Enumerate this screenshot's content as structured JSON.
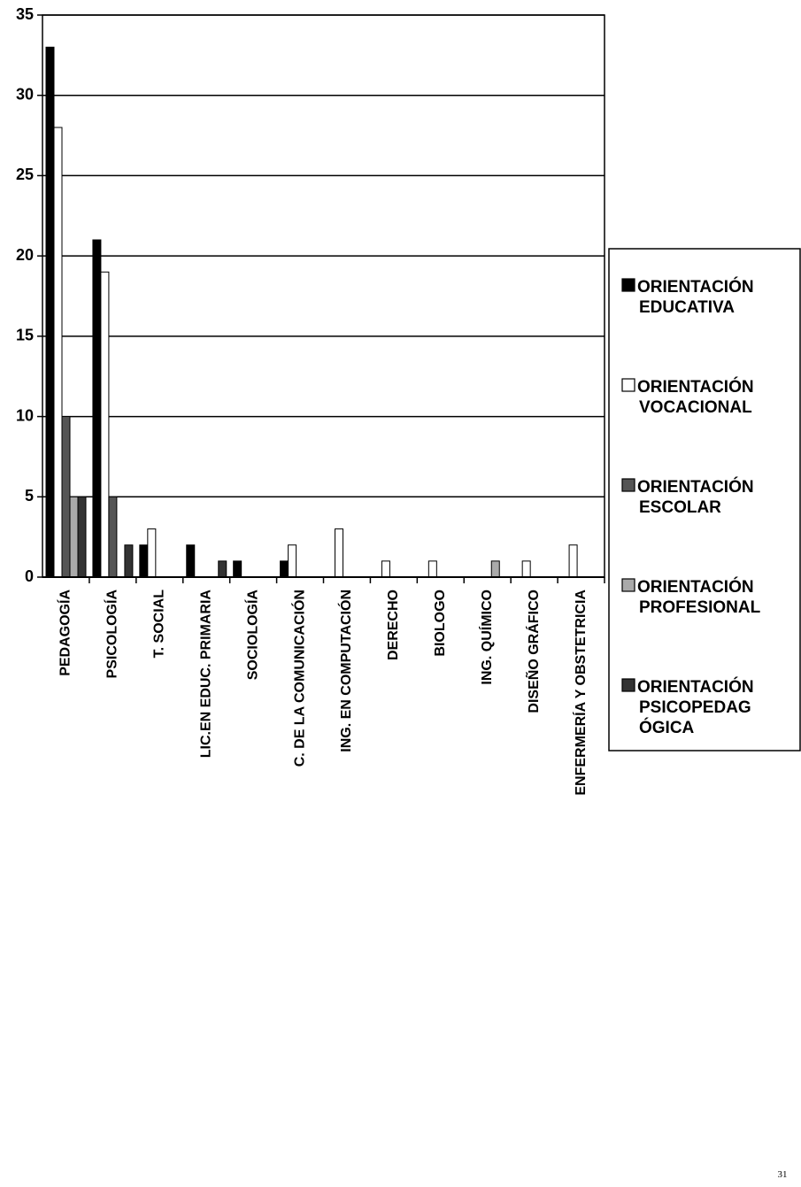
{
  "chart_data": {
    "type": "bar",
    "categories": [
      "PEDAGOGÍA",
      "PSICOLOGÍA",
      "T. SOCIAL",
      "LIC.EN EDUC. PRIMARIA",
      "SOCIOLOGÍA",
      "C. DE LA COMUNICACIÓN",
      "ING. EN COMPUTACIÓN",
      "DERECHO",
      "BIOLOGO",
      "ING. QUÍMICO",
      "DISEÑO GRÁFICO",
      "ENFERMERÍA Y OBSTETRICIA"
    ],
    "series": [
      {
        "name": "ORIENTACIÓN EDUCATIVA",
        "color": "#000000",
        "values": [
          33,
          21,
          2,
          2,
          1,
          1,
          0,
          0,
          0,
          0,
          0,
          0
        ]
      },
      {
        "name": "ORIENTACIÓN VOCACIONAL",
        "color": "#ffffff",
        "values": [
          28,
          19,
          3,
          0,
          0,
          2,
          3,
          1,
          1,
          0,
          1,
          2
        ]
      },
      {
        "name": "ORIENTACIÓN ESCOLAR",
        "color": "#555555",
        "values": [
          10,
          5,
          0,
          0,
          0,
          0,
          0,
          0,
          0,
          0,
          0,
          0
        ]
      },
      {
        "name": "ORIENTACIÓN PROFESIONAL",
        "color": "#aaaaaa",
        "values": [
          5,
          0,
          0,
          0,
          0,
          0,
          0,
          0,
          0,
          1,
          0,
          0
        ]
      },
      {
        "name": "ORIENTACIÓN PSICOPEDAGÓGICA",
        "color": "#333333",
        "values": [
          5,
          2,
          0,
          1,
          0,
          0,
          0,
          0,
          0,
          0,
          0,
          0
        ]
      }
    ],
    "ylim": [
      0,
      35
    ],
    "yticks": [
      0,
      5,
      10,
      15,
      20,
      25,
      30,
      35
    ],
    "grid": true,
    "legend": "right",
    "page_number": "31"
  }
}
